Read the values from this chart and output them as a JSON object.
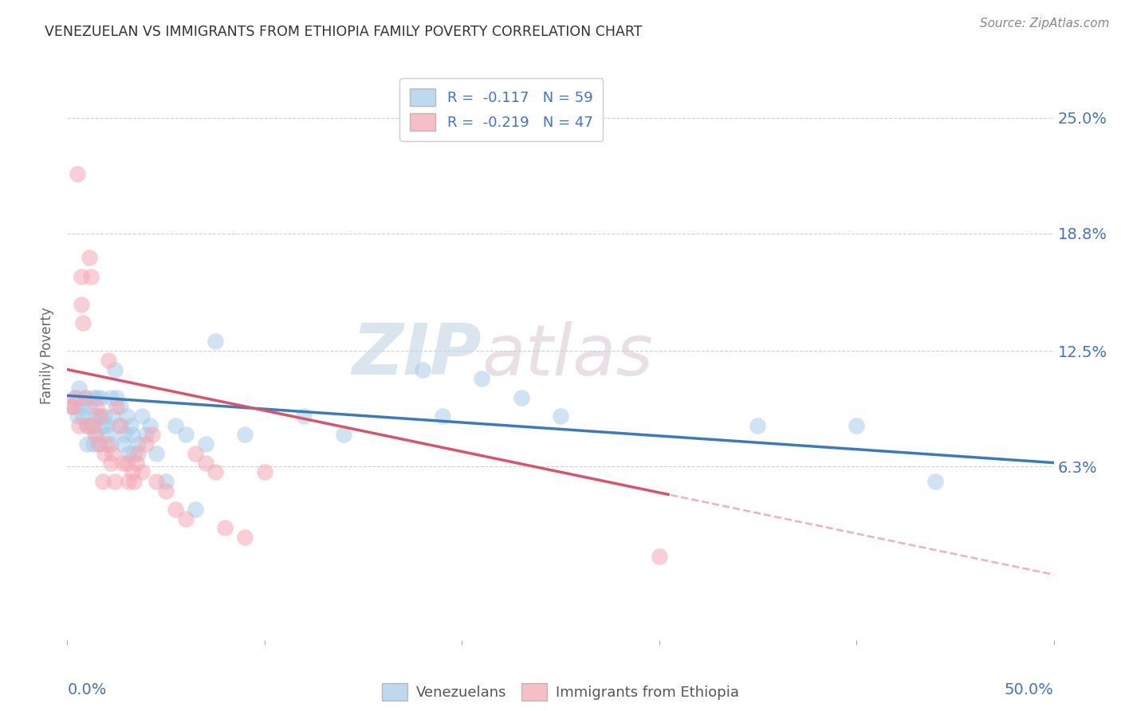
{
  "title": "VENEZUELAN VS IMMIGRANTS FROM ETHIOPIA FAMILY POVERTY CORRELATION CHART",
  "source": "Source: ZipAtlas.com",
  "ylabel": "Family Poverty",
  "ytick_labels": [
    "6.3%",
    "12.5%",
    "18.8%",
    "25.0%"
  ],
  "ytick_values": [
    0.063,
    0.125,
    0.188,
    0.25
  ],
  "xlim": [
    0.0,
    0.5
  ],
  "ylim": [
    -0.03,
    0.275
  ],
  "legend_blue_label": "R =  -0.117   N = 59",
  "legend_pink_label": "R =  -0.219   N = 47",
  "legend_bottom_blue": "Venezuelans",
  "legend_bottom_pink": "Immigrants from Ethiopia",
  "watermark_zip": "ZIP",
  "watermark_atlas": "atlas",
  "blue_color": "#a8cce8",
  "pink_color": "#f4a9b5",
  "blue_line_color": "#3a7abf",
  "pink_line_color": "#d9546a",
  "background_color": "#ffffff",
  "grid_color": "#d0d0d0",
  "blue_intercept": 0.101,
  "blue_slope": -0.072,
  "pink_intercept": 0.115,
  "pink_slope": -0.22,
  "venezuelan_x": [
    0.003,
    0.004,
    0.005,
    0.006,
    0.007,
    0.008,
    0.009,
    0.01,
    0.01,
    0.011,
    0.012,
    0.013,
    0.013,
    0.014,
    0.015,
    0.015,
    0.016,
    0.016,
    0.017,
    0.018,
    0.019,
    0.02,
    0.021,
    0.022,
    0.022,
    0.023,
    0.024,
    0.025,
    0.026,
    0.027,
    0.028,
    0.029,
    0.03,
    0.031,
    0.032,
    0.033,
    0.034,
    0.036,
    0.038,
    0.04,
    0.042,
    0.045,
    0.05,
    0.055,
    0.06,
    0.065,
    0.07,
    0.075,
    0.09,
    0.12,
    0.14,
    0.18,
    0.19,
    0.21,
    0.23,
    0.25,
    0.35,
    0.4,
    0.44
  ],
  "venezuelan_y": [
    0.095,
    0.1,
    0.09,
    0.105,
    0.095,
    0.09,
    0.1,
    0.085,
    0.075,
    0.095,
    0.085,
    0.1,
    0.075,
    0.09,
    0.1,
    0.08,
    0.09,
    0.075,
    0.1,
    0.085,
    0.09,
    0.085,
    0.08,
    0.1,
    0.075,
    0.09,
    0.115,
    0.1,
    0.085,
    0.095,
    0.075,
    0.08,
    0.09,
    0.07,
    0.085,
    0.08,
    0.07,
    0.075,
    0.09,
    0.08,
    0.085,
    0.07,
    0.055,
    0.085,
    0.08,
    0.04,
    0.075,
    0.13,
    0.08,
    0.09,
    0.08,
    0.115,
    0.09,
    0.11,
    0.1,
    0.09,
    0.085,
    0.085,
    0.055
  ],
  "ethiopia_x": [
    0.002,
    0.003,
    0.004,
    0.005,
    0.006,
    0.007,
    0.007,
    0.008,
    0.009,
    0.01,
    0.011,
    0.012,
    0.013,
    0.014,
    0.015,
    0.016,
    0.017,
    0.018,
    0.019,
    0.02,
    0.021,
    0.022,
    0.023,
    0.024,
    0.025,
    0.027,
    0.028,
    0.03,
    0.031,
    0.033,
    0.034,
    0.035,
    0.036,
    0.038,
    0.04,
    0.043,
    0.045,
    0.05,
    0.055,
    0.06,
    0.065,
    0.07,
    0.075,
    0.08,
    0.09,
    0.1,
    0.3
  ],
  "ethiopia_y": [
    0.095,
    0.095,
    0.1,
    0.22,
    0.085,
    0.165,
    0.15,
    0.14,
    0.1,
    0.085,
    0.175,
    0.165,
    0.085,
    0.08,
    0.095,
    0.075,
    0.09,
    0.055,
    0.07,
    0.075,
    0.12,
    0.065,
    0.07,
    0.055,
    0.095,
    0.085,
    0.065,
    0.065,
    0.055,
    0.06,
    0.055,
    0.065,
    0.07,
    0.06,
    0.075,
    0.08,
    0.055,
    0.05,
    0.04,
    0.035,
    0.07,
    0.065,
    0.06,
    0.03,
    0.025,
    0.06,
    0.015
  ]
}
